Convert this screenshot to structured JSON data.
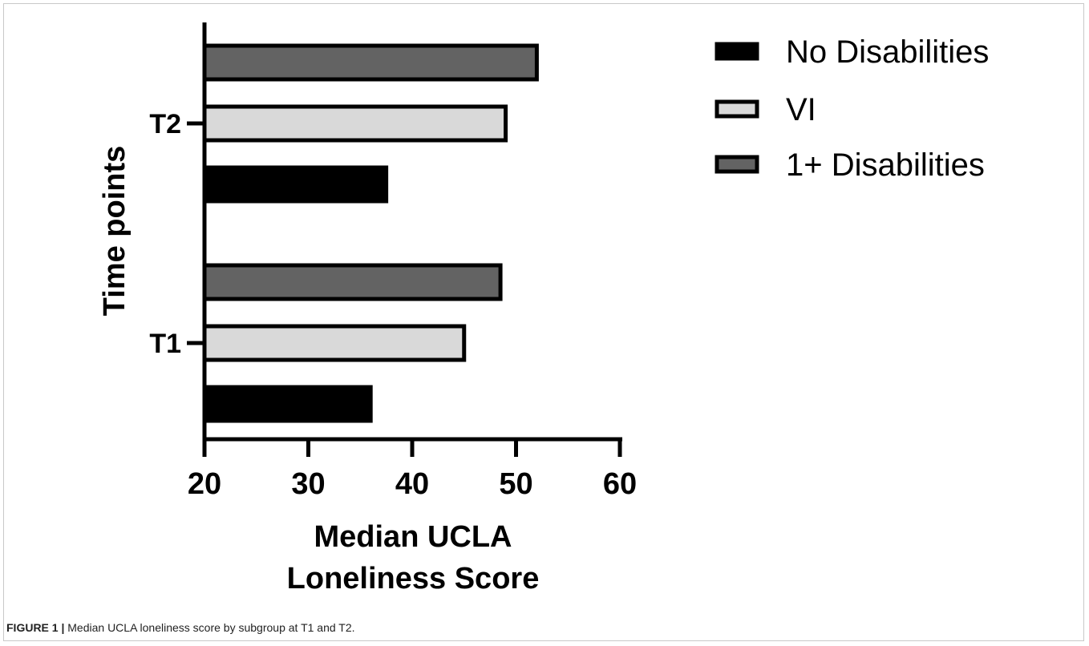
{
  "chart_data": {
    "type": "bar",
    "orientation": "horizontal",
    "categories": [
      "T1",
      "T2"
    ],
    "series": [
      {
        "name": "No Disabilities",
        "values": [
          36,
          37.5
        ],
        "color": "#000000"
      },
      {
        "name": "VI",
        "values": [
          45,
          49
        ],
        "color": "#d9d9d9"
      },
      {
        "name": "1+ Disabilities",
        "values": [
          48.5,
          52
        ],
        "color": "#636363"
      }
    ],
    "legend_labels": [
      "No Disabilities",
      "VI",
      "1+ Disabilities"
    ],
    "xlabel_line1": "Median UCLA",
    "xlabel_line2": "Loneliness Score",
    "ylabel": "Time points",
    "xlim": [
      20,
      60
    ],
    "xticks": [
      20,
      30,
      40,
      50,
      60
    ],
    "legend_position": "top-right",
    "grid": false
  },
  "caption": {
    "label": "FIGURE 1 |",
    "text": " Median UCLA loneliness score by subgroup at T1 and T2."
  }
}
